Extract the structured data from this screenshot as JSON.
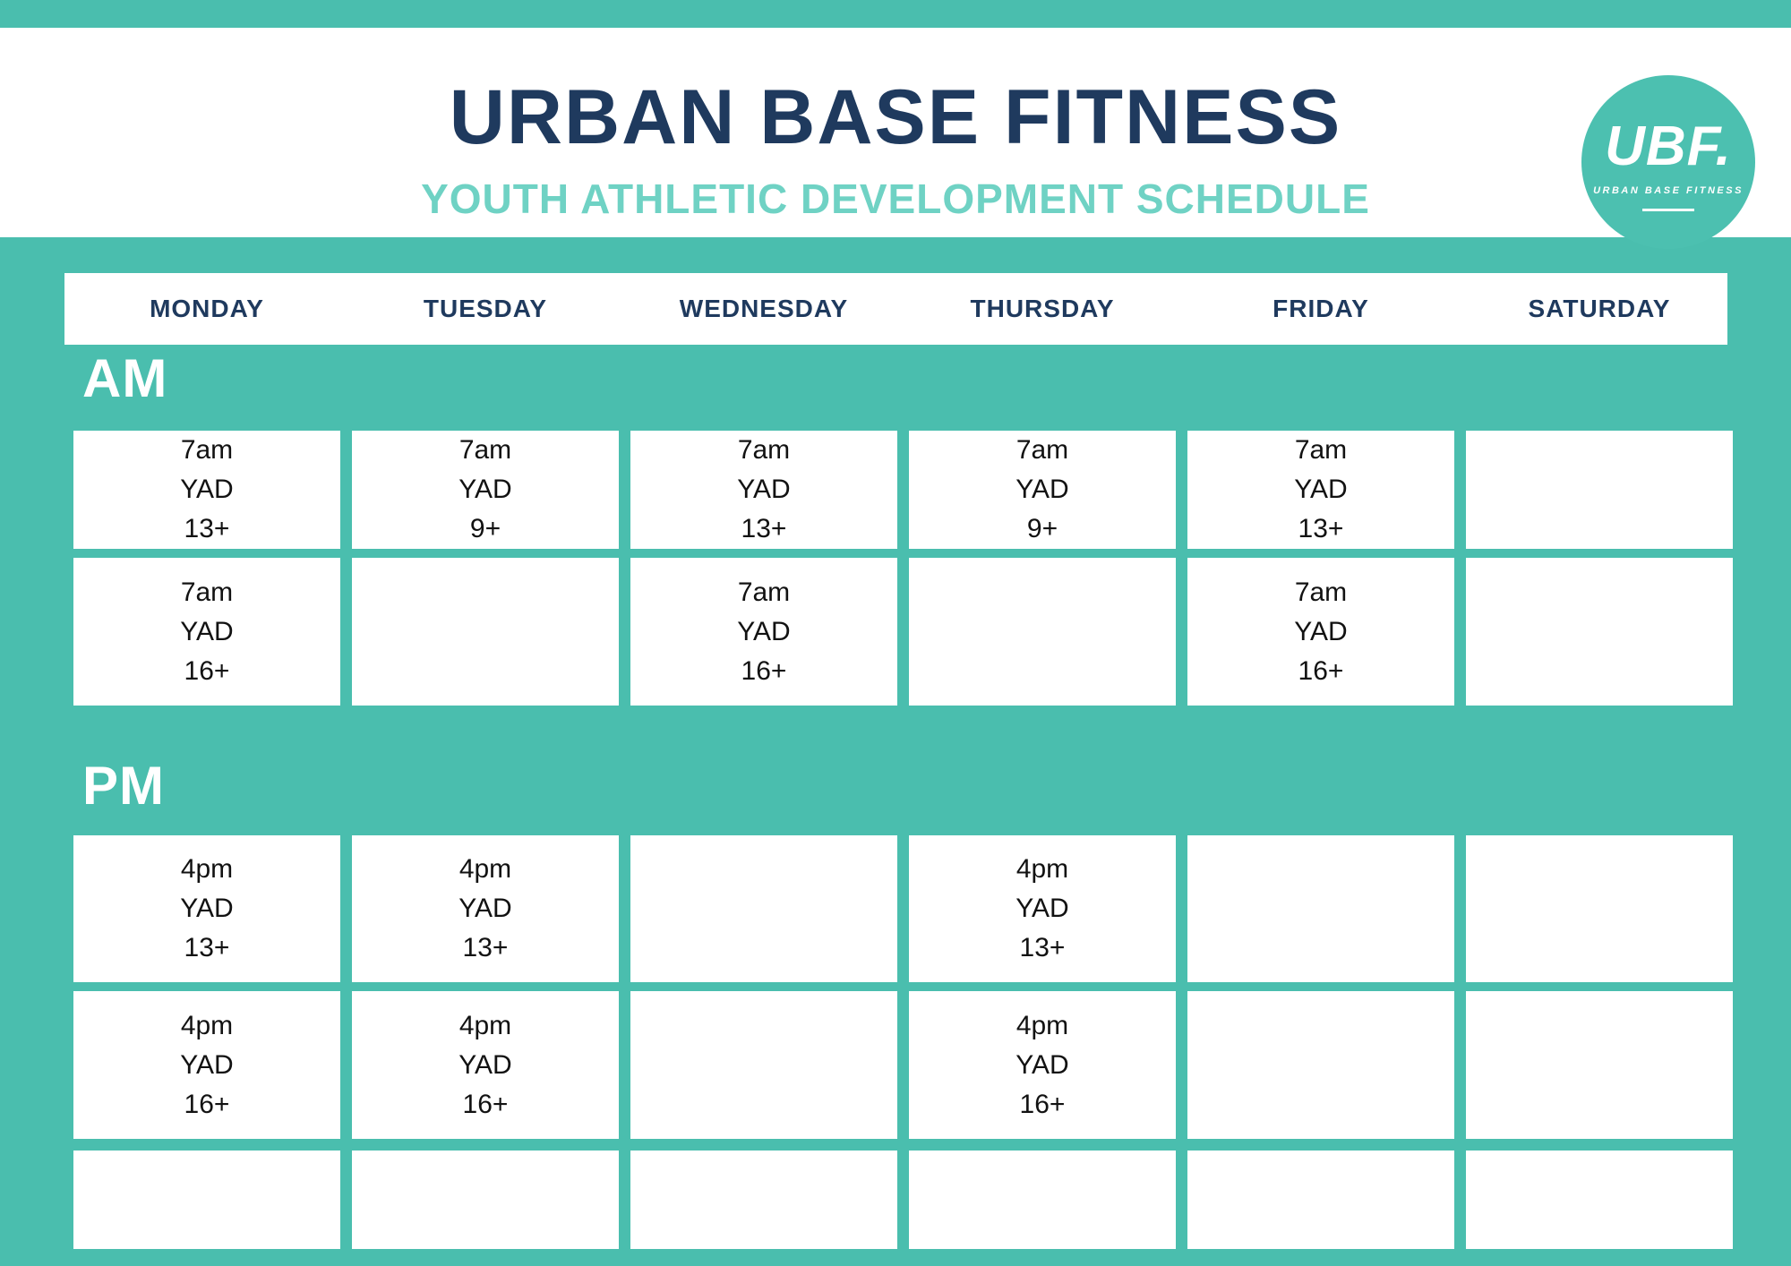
{
  "header": {
    "title": "URBAN BASE FITNESS",
    "subtitle": "YOUTH ATHLETIC DEVELOPMENT SCHEDULE"
  },
  "logo": {
    "abbr": "UBF.",
    "name": "URBAN BASE FITNESS"
  },
  "colors": {
    "brand_teal": "#4abeae",
    "navy": "#1f3a5e",
    "light_teal": "#6fd2c4",
    "cell_bg": "#ffffff",
    "cell_text": "#121212"
  },
  "days": [
    "MONDAY",
    "TUESDAY",
    "WEDNESDAY",
    "THURSDAY",
    "FRIDAY",
    "SATURDAY"
  ],
  "sections": [
    {
      "label": "AM",
      "rows": [
        {
          "cells": [
            [
              "7am",
              "YAD",
              "13+"
            ],
            [
              "7am",
              "YAD",
              "9+"
            ],
            [
              "7am",
              "YAD",
              "13+"
            ],
            [
              "7am",
              "YAD",
              "9+"
            ],
            [
              "7am",
              "YAD",
              "13+"
            ],
            []
          ]
        },
        {
          "cells": [
            [
              "7am",
              "YAD",
              "16+"
            ],
            [],
            [
              "7am",
              "YAD",
              "16+"
            ],
            [],
            [
              "7am",
              "YAD",
              "16+"
            ],
            []
          ]
        }
      ]
    },
    {
      "label": "PM",
      "rows": [
        {
          "cells": [
            [
              "4pm",
              "YAD",
              "13+"
            ],
            [
              "4pm",
              "YAD",
              "13+"
            ],
            [],
            [
              "4pm",
              "YAD",
              "13+"
            ],
            [],
            []
          ]
        },
        {
          "cells": [
            [
              "4pm",
              "YAD",
              "16+"
            ],
            [
              "4pm",
              "YAD",
              "16+"
            ],
            [],
            [
              "4pm",
              "YAD",
              "16+"
            ],
            [],
            []
          ]
        },
        {
          "cells": [
            [],
            [],
            [],
            [],
            [],
            []
          ]
        }
      ]
    }
  ]
}
